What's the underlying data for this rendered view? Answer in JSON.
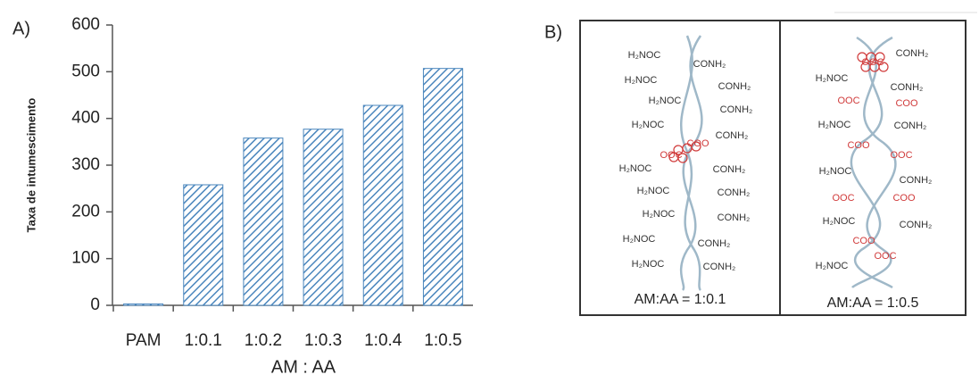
{
  "chart_data": {
    "type": "bar",
    "panel_label": "A)",
    "y_label": "Taxa de intumescimento",
    "x_label": "AM : AA",
    "categories": [
      "PAM",
      "1:0.1",
      "1:0.2",
      "1:0.3",
      "1:0.4",
      "1:0.5"
    ],
    "values": [
      3,
      258,
      358,
      377,
      428,
      507
    ],
    "color": "#4a86bd",
    "ylim": [
      0,
      600
    ],
    "yticks": [
      0,
      100,
      200,
      300,
      400,
      500,
      600
    ]
  },
  "diagram": {
    "panel_label": "B)",
    "panels": [
      {
        "caption": "AM:AA = 1:0.1",
        "labels": [
          "H₂NOC",
          "CONH₂",
          "H₂NOC",
          "CONH₂",
          "H₂NOC",
          "CONH₂",
          "H₂NOC",
          "CONH₂",
          "COO",
          "OOC",
          "H₂NOC",
          "CONH₂",
          "H₂NOC",
          "CONH₂",
          "H₂NOC",
          "CONH₂",
          "H₂NOC",
          "CONH₂",
          "H₂NOC",
          "CONH₂"
        ]
      },
      {
        "caption": "AM:AA = 1:0.5",
        "labels": [
          "CONH₂",
          "OOC",
          "H₂NOC",
          "CONH₂",
          "OOC",
          "COO",
          "H₂NOC",
          "CONH₂",
          "COO",
          "OOC",
          "H₂NOC",
          "CONH₂",
          "OOC",
          "COO",
          "H₂NOC",
          "CONH₂",
          "COO",
          "OOC",
          "H₂NOC"
        ]
      }
    ]
  }
}
